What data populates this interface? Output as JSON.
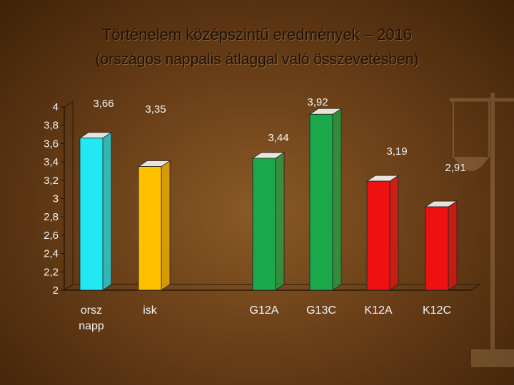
{
  "header": {
    "title": "Történelem középszintű eredmények – 2016",
    "subtitle": "(országos nappalis átlaggal való összevetésben)"
  },
  "chart_data": {
    "type": "bar",
    "categories": [
      [
        "orsz",
        "napp"
      ],
      [
        "isk"
      ],
      [
        "G12A"
      ],
      [
        "G13C"
      ],
      [
        "K12A"
      ],
      [
        "K12C"
      ]
    ],
    "values": [
      3.66,
      3.35,
      3.44,
      3.92,
      3.19,
      2.91
    ],
    "value_labels": [
      "3,66",
      "3,35",
      "3,44",
      "3,92",
      "3,19",
      "2,91"
    ],
    "colors": [
      "#22e8f4",
      "#ffc000",
      "#1aa84a",
      "#1aa84a",
      "#ee1111",
      "#ee1111"
    ],
    "ylim": [
      2,
      4
    ],
    "yticks": [
      "2",
      "2,2",
      "2,4",
      "2,6",
      "2,8",
      "3",
      "3,2",
      "3,4",
      "3,6",
      "3,8",
      "4"
    ],
    "title": "Történelem középszintű eredmények – 2016",
    "subtitle": "(országos nappalis átlaggal való összevetésben)",
    "xlabel": "",
    "ylabel": "",
    "grid": false,
    "legend": "none"
  }
}
